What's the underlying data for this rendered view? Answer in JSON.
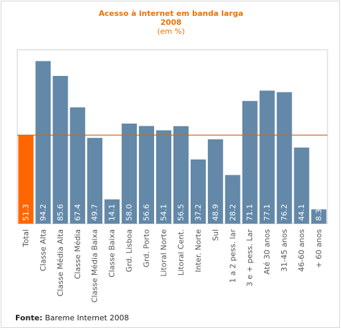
{
  "chart_data": {
    "type": "bar",
    "title_line1": "Acesso à internet em banda larga",
    "title_line2": "2008",
    "subtitle": "(em %)",
    "categories": [
      "Total",
      "Classe Alta",
      "Classe Média Alta",
      "Classe Média",
      "Classe Média Baixa",
      "Classe Baixa",
      "Grd. Lisboa",
      "Grd. Porto",
      "Litoral Norte",
      "Litoral Cent.",
      "Inter. Norte",
      "Sul",
      "1 a 2 pess. lar",
      "3 e + pess. Lar",
      "Até 30 anos",
      "31-45 anos",
      "46-60 anos",
      "+ 60 anos"
    ],
    "values": [
      51.3,
      94.2,
      85.6,
      67.4,
      49.7,
      14.1,
      58.0,
      56.6,
      54.1,
      56.5,
      37.2,
      48.9,
      28.2,
      71.1,
      77.1,
      76.2,
      44.1,
      8.3
    ],
    "value_labels": [
      "51.3",
      "94.2",
      "85.6",
      "67.4",
      "49.7",
      "14.1",
      "58.0",
      "56.6",
      "54.1",
      "56.5",
      "37.2",
      "48.9",
      "28.2",
      "71.1",
      "77.1",
      "76.2",
      "44.1",
      "8.3"
    ],
    "reference_line": 51.3,
    "ylim": [
      0,
      100
    ],
    "grid": false,
    "colors": {
      "highlight": "#ff6600",
      "bar": "#6388a8",
      "line": "#cc6a1a",
      "title": "#e8720c"
    }
  },
  "footer": {
    "source_label": "Fonte:",
    "source_text": "Bareme Internet 2008"
  }
}
